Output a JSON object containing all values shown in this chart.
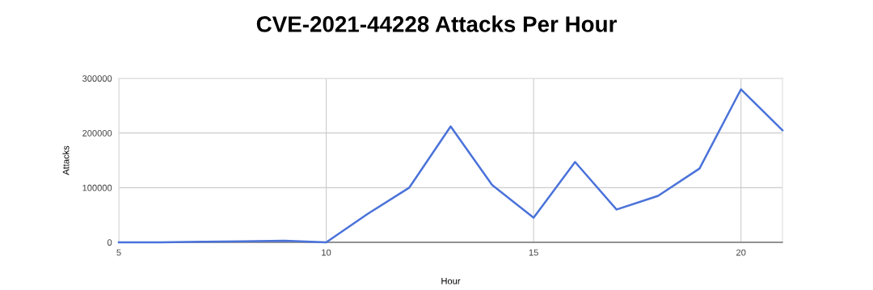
{
  "chart_data": {
    "type": "line",
    "title": "CVE-2021-44228 Attacks Per Hour",
    "xlabel": "Hour",
    "ylabel": "Attacks",
    "x": [
      5,
      6,
      7,
      8,
      9,
      10,
      11,
      12,
      13,
      14,
      15,
      16,
      17,
      18,
      19,
      20,
      21
    ],
    "series": [
      {
        "color": "#4a72d9",
        "values": [
          0,
          0,
          1000,
          2000,
          3000,
          0,
          52000,
          100000,
          212000,
          105000,
          45000,
          147000,
          60000,
          85000,
          135000,
          280000,
          205000
        ]
      }
    ],
    "xlim": [
      5,
      21
    ],
    "xticks": [
      5,
      10,
      15,
      20
    ],
    "ylim": [
      0,
      300000
    ],
    "yticks": [
      0,
      100000,
      200000,
      300000
    ],
    "grid": true,
    "marker": "none",
    "line_style": "solid",
    "legend": false
  }
}
